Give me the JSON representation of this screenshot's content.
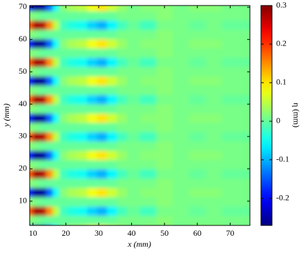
{
  "chart_data": {
    "type": "contour",
    "colormap": "jet",
    "xlabel": "x (mm)",
    "ylabel": "y (mm)",
    "xlim": [
      9,
      76
    ],
    "ylim": [
      2.5,
      70.5
    ],
    "xticks": [
      10,
      20,
      30,
      40,
      50,
      60,
      70
    ],
    "yticks": [
      10,
      20,
      30,
      40,
      50,
      60,
      70
    ],
    "x": [
      9,
      11,
      13,
      15,
      17,
      19,
      22,
      25,
      28,
      31,
      34,
      37,
      40,
      45,
      50,
      55,
      60,
      65,
      70,
      76
    ],
    "y": [
      1.25,
      4.125,
      7,
      9.875,
      12.75,
      15.625,
      18.5,
      21.375,
      24.25,
      27.125,
      30,
      32.875,
      35.75,
      38.625,
      41.5,
      44.375,
      47.25,
      50.125,
      53,
      55.875,
      58.75,
      61.625,
      64.5,
      67.375,
      70.25
    ],
    "z": [
      [
        -0.18,
        -0.26,
        -0.25,
        -0.14,
        -0.05,
        0.02,
        0.04,
        0.05,
        0.08,
        0.1,
        0.06,
        0.03,
        0.01,
        0.02,
        0.02,
        0.01,
        0.02,
        0.02,
        0.01,
        0.01
      ],
      [
        0.02,
        0.01,
        0,
        0,
        0,
        0,
        0,
        0,
        0,
        0,
        0,
        0.01,
        0.01,
        0.01,
        0.02,
        0.01,
        0.01,
        0.01,
        0.01,
        0.01
      ],
      [
        0.18,
        0.28,
        0.27,
        0.15,
        0.05,
        -0.02,
        -0.04,
        -0.05,
        -0.08,
        -0.1,
        -0.06,
        -0.02,
        0,
        -0.02,
        0.01,
        0.01,
        0,
        0.01,
        0,
        0
      ],
      [
        0.02,
        0.01,
        0,
        0,
        0,
        0,
        0,
        0,
        0,
        0,
        0,
        0.01,
        0.01,
        0.01,
        0.02,
        0.01,
        0.01,
        0.01,
        0.01,
        0.01
      ],
      [
        -0.18,
        -0.26,
        -0.25,
        -0.14,
        -0.05,
        0.02,
        0.04,
        0.05,
        0.08,
        0.1,
        0.06,
        0.03,
        0.01,
        0.02,
        0.02,
        0.01,
        0.02,
        0.02,
        0.01,
        0.01
      ],
      [
        0.02,
        0.01,
        0,
        0,
        0,
        0,
        0,
        0,
        0,
        0,
        0,
        0.01,
        0.01,
        0.01,
        0.02,
        0.01,
        0.01,
        0.01,
        0.01,
        0.01
      ],
      [
        0.18,
        0.28,
        0.27,
        0.15,
        0.05,
        -0.02,
        -0.04,
        -0.05,
        -0.08,
        -0.1,
        -0.06,
        -0.02,
        0,
        -0.02,
        0.01,
        0.01,
        0,
        0.01,
        0,
        0
      ],
      [
        0.02,
        0.01,
        0,
        0,
        0,
        0,
        0,
        0,
        0,
        0,
        0,
        0.01,
        0.01,
        0.01,
        0.02,
        0.01,
        0.01,
        0.01,
        0.01,
        0.01
      ],
      [
        -0.18,
        -0.26,
        -0.25,
        -0.14,
        -0.05,
        0.02,
        0.04,
        0.05,
        0.08,
        0.1,
        0.06,
        0.03,
        0.01,
        0.02,
        0.02,
        0.01,
        0.02,
        0.02,
        0.01,
        0.01
      ],
      [
        0.02,
        0.01,
        0,
        0,
        0,
        0,
        0,
        0,
        0,
        0,
        0,
        0.01,
        0.01,
        0.01,
        0.02,
        0.01,
        0.01,
        0.01,
        0.01,
        0.01
      ],
      [
        0.18,
        0.28,
        0.27,
        0.15,
        0.05,
        -0.02,
        -0.04,
        -0.05,
        -0.08,
        -0.1,
        -0.06,
        -0.02,
        0,
        -0.02,
        0.01,
        0.01,
        0,
        0.01,
        0,
        0
      ],
      [
        0.02,
        0.01,
        0,
        0,
        0,
        0,
        0,
        0,
        0,
        0,
        0,
        0.01,
        0.01,
        0.01,
        0.02,
        0.01,
        0.01,
        0.01,
        0.01,
        0.01
      ],
      [
        -0.18,
        -0.26,
        -0.25,
        -0.14,
        -0.05,
        0.02,
        0.04,
        0.05,
        0.08,
        0.1,
        0.06,
        0.03,
        0.01,
        0.02,
        0.02,
        0.01,
        0.02,
        0.02,
        0.01,
        0.01
      ],
      [
        0.02,
        0.01,
        0,
        0,
        0,
        0,
        0,
        0,
        0,
        0,
        0,
        0.01,
        0.01,
        0.01,
        0.02,
        0.01,
        0.01,
        0.01,
        0.01,
        0.01
      ],
      [
        0.18,
        0.28,
        0.27,
        0.15,
        0.05,
        -0.02,
        -0.04,
        -0.05,
        -0.08,
        -0.1,
        -0.06,
        -0.02,
        0,
        -0.02,
        0.01,
        0.01,
        0,
        0.01,
        0,
        0
      ],
      [
        0.02,
        0.01,
        0,
        0,
        0,
        0,
        0,
        0,
        0,
        0,
        0,
        0.01,
        0.01,
        0.01,
        0.02,
        0.01,
        0.01,
        0.01,
        0.01,
        0.01
      ],
      [
        -0.18,
        -0.26,
        -0.25,
        -0.14,
        -0.05,
        0.02,
        0.04,
        0.05,
        0.08,
        0.1,
        0.06,
        0.03,
        0.01,
        0.02,
        0.02,
        0.01,
        0.02,
        0.02,
        0.01,
        0.01
      ],
      [
        0.02,
        0.01,
        0,
        0,
        0,
        0,
        0,
        0,
        0,
        0,
        0,
        0.01,
        0.01,
        0.01,
        0.02,
        0.01,
        0.01,
        0.01,
        0.01,
        0.01
      ],
      [
        0.18,
        0.28,
        0.27,
        0.15,
        0.05,
        -0.02,
        -0.04,
        -0.05,
        -0.08,
        -0.1,
        -0.06,
        -0.02,
        0,
        -0.02,
        0.01,
        0.01,
        0,
        0.01,
        0,
        0
      ],
      [
        0.02,
        0.01,
        0,
        0,
        0,
        0,
        0,
        0,
        0,
        0,
        0,
        0.01,
        0.01,
        0.01,
        0.02,
        0.01,
        0.01,
        0.01,
        0.01,
        0.01
      ],
      [
        -0.18,
        -0.26,
        -0.25,
        -0.14,
        -0.05,
        0.02,
        0.04,
        0.05,
        0.08,
        0.1,
        0.06,
        0.03,
        0.01,
        0.02,
        0.02,
        0.01,
        0.02,
        0.02,
        0.01,
        0.01
      ],
      [
        0.02,
        0.01,
        0,
        0,
        0,
        0,
        0,
        0,
        0,
        0,
        0,
        0.01,
        0.01,
        0.01,
        0.02,
        0.01,
        0.01,
        0.01,
        0.01,
        0.01
      ],
      [
        0.18,
        0.28,
        0.27,
        0.15,
        0.05,
        -0.02,
        -0.04,
        -0.05,
        -0.08,
        -0.1,
        -0.06,
        -0.02,
        0,
        -0.02,
        0.01,
        0.01,
        0,
        0.01,
        0,
        0
      ],
      [
        0.02,
        0.01,
        0,
        0,
        0,
        0,
        0,
        0,
        0,
        0,
        0,
        0.01,
        0.01,
        0.01,
        0.02,
        0.01,
        0.01,
        0.01,
        0.01,
        0.01
      ],
      [
        -0.18,
        -0.26,
        -0.25,
        -0.14,
        -0.05,
        0.02,
        0.04,
        0.05,
        0.08,
        0.1,
        0.06,
        0.03,
        0.01,
        0.02,
        0.02,
        0.01,
        0.02,
        0.02,
        0.01,
        0.01
      ]
    ],
    "colorbar": {
      "label": "η (mm)",
      "lim": [
        -0.27,
        0.3
      ],
      "ticks": [
        -0.2,
        -0.1,
        0,
        0.1,
        0.2,
        0.3
      ]
    }
  }
}
